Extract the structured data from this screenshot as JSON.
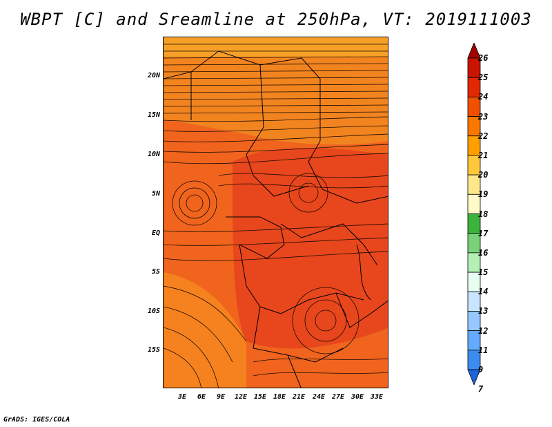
{
  "title": "WBPT [C] and Sreamline at 250hPa, VT: 2019111003",
  "footer": "GrADS: IGES/COLA",
  "lat_labels": [
    "20N",
    "15N",
    "10N",
    "5N",
    "EQ",
    "5S",
    "10S",
    "15S"
  ],
  "lon_labels": [
    "3E",
    "6E",
    "9E",
    "12E",
    "15E",
    "18E",
    "21E",
    "24E",
    "27E",
    "30E",
    "33E"
  ],
  "colorbar": {
    "levels": [
      "26",
      "25",
      "24",
      "23",
      "22",
      "21",
      "20",
      "19",
      "18",
      "17",
      "16",
      "15",
      "14",
      "13",
      "12",
      "11",
      "9",
      "7"
    ],
    "colors": [
      "#a50000",
      "#c81400",
      "#e12800",
      "#f05000",
      "#fa7800",
      "#ffa000",
      "#ffc83c",
      "#ffe88c",
      "#fffac8",
      "#3cb43c",
      "#78d278",
      "#b4f0b4",
      "#e6fff0",
      "#c8e6ff",
      "#96c8ff",
      "#64aaff",
      "#3c8cf0",
      "#1e64dc"
    ]
  },
  "field_colors": {
    "warm": "#e8461c",
    "mid": "#f0641e",
    "cool": "#f5821e",
    "cooler": "#f7a028"
  }
}
